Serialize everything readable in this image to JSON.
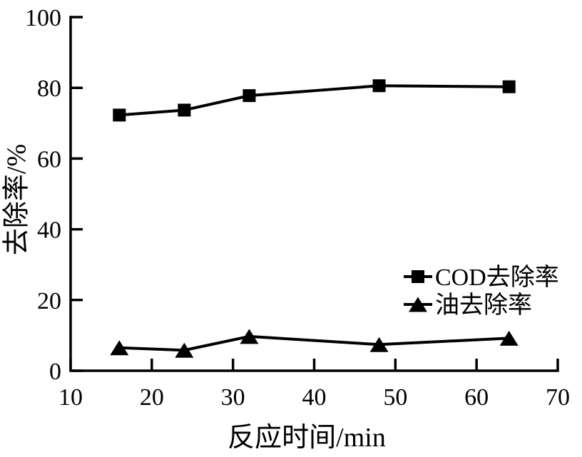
{
  "figure": {
    "background": "#ffffff",
    "text_color": "#000000"
  },
  "chart_data": {
    "type": "line",
    "title": "",
    "xlabel": "反应时间/min",
    "ylabel": "去除率/%",
    "xlim": [
      10,
      70
    ],
    "ylim": [
      0,
      100
    ],
    "xticks": [
      10,
      20,
      30,
      40,
      50,
      60,
      70
    ],
    "yticks": [
      0,
      20,
      40,
      60,
      80,
      100
    ],
    "grid": false,
    "legend_position": "inside lower right",
    "axis_color": "#000000",
    "series": [
      {
        "name": "COD去除率",
        "marker": "square",
        "color": "#000000",
        "x": [
          16,
          24,
          32,
          48,
          64
        ],
        "y": [
          72.3,
          73.7,
          77.8,
          80.6,
          80.3
        ]
      },
      {
        "name": "油去除率",
        "marker": "triangle",
        "color": "#000000",
        "x": [
          16,
          24,
          32,
          48,
          64
        ],
        "y": [
          6.5,
          5.8,
          9.7,
          7.4,
          9.2
        ]
      }
    ]
  }
}
